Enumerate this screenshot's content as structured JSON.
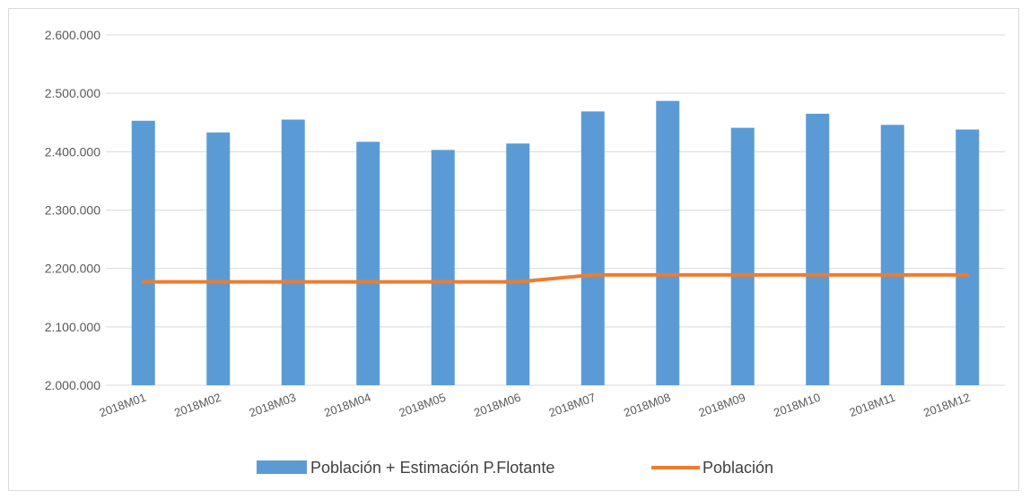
{
  "chart_data": {
    "type": "bar",
    "title": "",
    "xlabel": "",
    "ylabel": "",
    "categories": [
      "2018M01",
      "2018M02",
      "2018M03",
      "2018M04",
      "2018M05",
      "2018M06",
      "2018M07",
      "2018M08",
      "2018M09",
      "2018M10",
      "2018M11",
      "2018M12"
    ],
    "ylim": [
      2000000,
      2600000
    ],
    "yticks": [
      2000000,
      2100000,
      2200000,
      2300000,
      2400000,
      2500000,
      2600000
    ],
    "ytick_labels": [
      "2.000.000",
      "2.100.000",
      "2.200.000",
      "2.300.000",
      "2.400.000",
      "2.500.000",
      "2.600.000"
    ],
    "grid": true,
    "legend_position": "bottom",
    "series": [
      {
        "name": "Población + Estimación P.Flotante",
        "type": "bar",
        "color": "#5b9bd5",
        "values": [
          2453000,
          2433000,
          2455000,
          2417000,
          2403000,
          2414000,
          2469000,
          2487000,
          2441000,
          2465000,
          2446000,
          2438000
        ]
      },
      {
        "name": "Población",
        "type": "line",
        "color": "#ed7d31",
        "values": [
          2177000,
          2177000,
          2177000,
          2177000,
          2177000,
          2177000,
          2189000,
          2189000,
          2189000,
          2189000,
          2189000,
          2189000
        ]
      }
    ]
  }
}
